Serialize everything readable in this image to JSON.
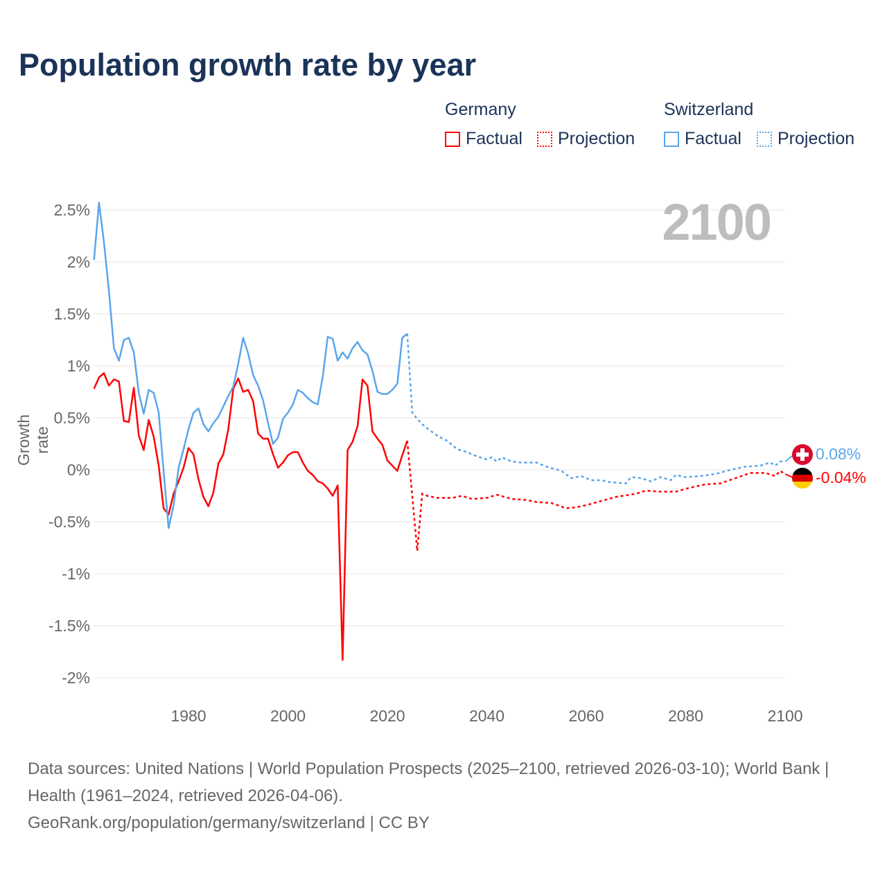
{
  "title": "Population growth rate by year",
  "legend": {
    "groups": [
      {
        "name": "Germany",
        "color": "#ff0000",
        "factual": "Factual",
        "projection": "Projection"
      },
      {
        "name": "Switzerland",
        "color": "#5aa5ea",
        "factual": "Factual",
        "projection": "Projection"
      }
    ]
  },
  "current_year_label": "2100",
  "end_labels": {
    "switzerland": "0.08%",
    "germany": "-0.04%"
  },
  "footer": {
    "sources": "Data sources: United Nations | World Population Prospects (2025–2100, retrieved 2026-03-10); World Bank | Health (1961–2024, retrieved 2026-04-06).",
    "credit": "GeoRank.org/population/germany/switzerland | CC BY"
  },
  "chart_data": {
    "type": "line",
    "title": "Population growth rate by year",
    "xlabel": "",
    "ylabel": "Growth rate",
    "xlim": [
      1961,
      2100
    ],
    "ylim": [
      -2.2,
      2.7
    ],
    "x_ticks": [
      1980,
      2000,
      2020,
      2040,
      2060,
      2080,
      2100
    ],
    "y_ticks": [
      {
        "v": 2.5,
        "label": "2.5%"
      },
      {
        "v": 2,
        "label": "2%"
      },
      {
        "v": 1.5,
        "label": "1.5%"
      },
      {
        "v": 1,
        "label": "1%"
      },
      {
        "v": 0.5,
        "label": "0.5%"
      },
      {
        "v": 0,
        "label": "0%"
      },
      {
        "v": -0.5,
        "label": "-0.5%"
      },
      {
        "v": -1,
        "label": "-1%"
      },
      {
        "v": -1.5,
        "label": "-1.5%"
      },
      {
        "v": -2,
        "label": "-2%"
      }
    ],
    "grid": true,
    "series": [
      {
        "name": "Germany",
        "color": "#ff0000",
        "factual_start_year": 1961,
        "factual": [
          0.78,
          0.89,
          0.93,
          0.81,
          0.87,
          0.85,
          0.47,
          0.46,
          0.79,
          0.33,
          0.19,
          0.48,
          0.32,
          0.04,
          -0.37,
          -0.43,
          -0.23,
          -0.11,
          0.02,
          0.21,
          0.15,
          -0.09,
          -0.26,
          -0.35,
          -0.22,
          0.06,
          0.15,
          0.39,
          0.78,
          0.88,
          0.75,
          0.77,
          0.66,
          0.35,
          0.3,
          0.3,
          0.15,
          0.02,
          0.07,
          0.14,
          0.17,
          0.17,
          0.07,
          -0.01,
          -0.05,
          -0.11,
          -0.13,
          -0.18,
          -0.25,
          -0.15,
          -1.83,
          0.19,
          0.27,
          0.42,
          0.87,
          0.81,
          0.37,
          0.3,
          0.24,
          0.09,
          0.04,
          -0.01,
          0.14,
          0.28
        ],
        "projection": [
          [
            2024,
            0.28
          ],
          [
            2025,
            -0.25
          ],
          [
            2026,
            -0.78
          ],
          [
            2027,
            -0.23
          ],
          [
            2028,
            -0.25
          ],
          [
            2030,
            -0.27
          ],
          [
            2033,
            -0.27
          ],
          [
            2035,
            -0.25
          ],
          [
            2037,
            -0.28
          ],
          [
            2040,
            -0.27
          ],
          [
            2042,
            -0.24
          ],
          [
            2045,
            -0.28
          ],
          [
            2048,
            -0.29
          ],
          [
            2050,
            -0.31
          ],
          [
            2053,
            -0.32
          ],
          [
            2056,
            -0.37
          ],
          [
            2058,
            -0.36
          ],
          [
            2060,
            -0.34
          ],
          [
            2063,
            -0.3
          ],
          [
            2066,
            -0.26
          ],
          [
            2070,
            -0.23
          ],
          [
            2072,
            -0.2
          ],
          [
            2075,
            -0.21
          ],
          [
            2078,
            -0.21
          ],
          [
            2081,
            -0.17
          ],
          [
            2084,
            -0.14
          ],
          [
            2087,
            -0.13
          ],
          [
            2090,
            -0.08
          ],
          [
            2093,
            -0.03
          ],
          [
            2096,
            -0.03
          ],
          [
            2098,
            -0.06
          ],
          [
            2099,
            -0.01
          ],
          [
            2100,
            -0.04
          ]
        ]
      },
      {
        "name": "Switzerland",
        "color": "#5aa5ea",
        "factual_start_year": 1961,
        "factual": [
          2.02,
          2.57,
          2.19,
          1.72,
          1.17,
          1.05,
          1.25,
          1.27,
          1.13,
          0.74,
          0.54,
          0.77,
          0.74,
          0.55,
          -0.01,
          -0.56,
          -0.34,
          0.02,
          0.2,
          0.39,
          0.55,
          0.59,
          0.44,
          0.37,
          0.45,
          0.51,
          0.61,
          0.71,
          0.8,
          1.02,
          1.27,
          1.12,
          0.91,
          0.81,
          0.67,
          0.45,
          0.25,
          0.31,
          0.49,
          0.55,
          0.63,
          0.77,
          0.74,
          0.69,
          0.65,
          0.63,
          0.9,
          1.28,
          1.26,
          1.05,
          1.13,
          1.07,
          1.17,
          1.23,
          1.15,
          1.11,
          0.95,
          0.75,
          0.73,
          0.73,
          0.77,
          0.83,
          1.27,
          1.31
        ],
        "projection": [
          [
            2024,
            1.31
          ],
          [
            2025,
            0.55
          ],
          [
            2026,
            0.49
          ],
          [
            2027,
            0.44
          ],
          [
            2028,
            0.4
          ],
          [
            2030,
            0.33
          ],
          [
            2032,
            0.28
          ],
          [
            2034,
            0.2
          ],
          [
            2036,
            0.17
          ],
          [
            2038,
            0.13
          ],
          [
            2040,
            0.1
          ],
          [
            2041,
            0.12
          ],
          [
            2042,
            0.08
          ],
          [
            2043,
            0.12
          ],
          [
            2045,
            0.08
          ],
          [
            2047,
            0.07
          ],
          [
            2050,
            0.07
          ],
          [
            2052,
            0.03
          ],
          [
            2055,
            -0.01
          ],
          [
            2057,
            -0.08
          ],
          [
            2059,
            -0.06
          ],
          [
            2061,
            -0.1
          ],
          [
            2063,
            -0.1
          ],
          [
            2065,
            -0.12
          ],
          [
            2068,
            -0.13
          ],
          [
            2069,
            -0.07
          ],
          [
            2071,
            -0.08
          ],
          [
            2073,
            -0.11
          ],
          [
            2075,
            -0.07
          ],
          [
            2077,
            -0.1
          ],
          [
            2078,
            -0.05
          ],
          [
            2080,
            -0.07
          ],
          [
            2083,
            -0.06
          ],
          [
            2086,
            -0.04
          ],
          [
            2089,
            0.0
          ],
          [
            2092,
            0.03
          ],
          [
            2095,
            0.04
          ],
          [
            2097,
            0.07
          ],
          [
            2098,
            0.04
          ],
          [
            2099,
            0.08
          ],
          [
            2100,
            0.08
          ]
        ]
      }
    ]
  }
}
